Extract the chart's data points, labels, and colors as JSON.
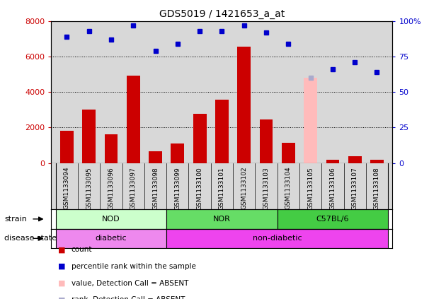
{
  "title": "GDS5019 / 1421653_a_at",
  "samples": [
    "GSM1133094",
    "GSM1133095",
    "GSM1133096",
    "GSM1133097",
    "GSM1133098",
    "GSM1133099",
    "GSM1133100",
    "GSM1133101",
    "GSM1133102",
    "GSM1133103",
    "GSM1133104",
    "GSM1133105",
    "GSM1133106",
    "GSM1133107",
    "GSM1133108"
  ],
  "counts": [
    1800,
    3000,
    1600,
    4900,
    650,
    1100,
    2750,
    3550,
    6550,
    2450,
    1150,
    80,
    200,
    380,
    200
  ],
  "percentile_ranks": [
    89,
    93,
    87,
    97,
    79,
    84,
    93,
    93,
    97,
    92,
    84,
    null,
    66,
    71,
    64
  ],
  "absent_value": [
    null,
    null,
    null,
    null,
    null,
    null,
    null,
    null,
    null,
    null,
    null,
    4800,
    null,
    null,
    null
  ],
  "absent_rank": [
    null,
    null,
    null,
    null,
    null,
    null,
    null,
    null,
    null,
    null,
    null,
    60,
    null,
    null,
    null
  ],
  "bar_color": "#cc0000",
  "dot_color": "#0000cc",
  "absent_val_color": "#ffbbbb",
  "absent_rank_color": "#aaaacc",
  "strain_groups": [
    {
      "label": "NOD",
      "start": 0,
      "end": 4,
      "color": "#ccffcc"
    },
    {
      "label": "NOR",
      "start": 5,
      "end": 9,
      "color": "#66dd66"
    },
    {
      "label": "C57BL/6",
      "start": 10,
      "end": 14,
      "color": "#44cc44"
    }
  ],
  "disease_groups": [
    {
      "label": "diabetic",
      "start": 0,
      "end": 4,
      "color": "#ee88ee"
    },
    {
      "label": "non-diabetic",
      "start": 5,
      "end": 14,
      "color": "#ee44ee"
    }
  ],
  "ylim_left": [
    0,
    8000
  ],
  "ylim_right": [
    0,
    100
  ],
  "yticks_left": [
    0,
    2000,
    4000,
    6000,
    8000
  ],
  "yticks_right": [
    0,
    25,
    50,
    75,
    100
  ],
  "legend_items": [
    {
      "label": "count",
      "color": "#cc0000"
    },
    {
      "label": "percentile rank within the sample",
      "color": "#0000cc"
    },
    {
      "label": "value, Detection Call = ABSENT",
      "color": "#ffbbbb"
    },
    {
      "label": "rank, Detection Call = ABSENT",
      "color": "#aaaacc"
    }
  ],
  "grid_color": "black",
  "bg_color": "white",
  "plot_bg_color": "#d8d8d8",
  "ylabel_left_color": "#cc0000",
  "ylabel_right_color": "#0000cc"
}
